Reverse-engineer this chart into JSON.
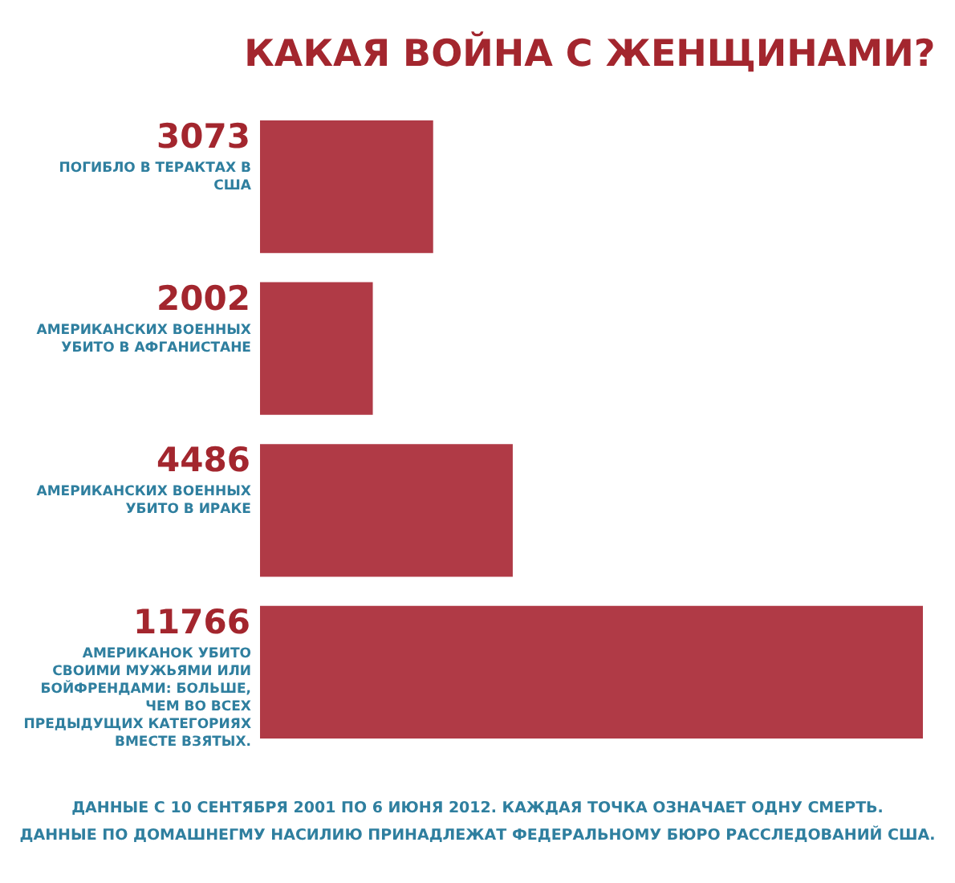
{
  "chart_data": {
    "type": "bar",
    "orientation": "horizontal",
    "title": "КАКАЯ ВОЙНА С ЖЕНЩИНАМИ?",
    "categories": [
      "ПОГИБЛО В ТЕРАКТАХ В США",
      "АМЕРИКАНСКИХ ВОЕННЫХ УБИТО В АФГАНИСТАНЕ",
      "АМЕРИКАНСКИХ ВОЕННЫХ УБИТО В ИРАКЕ",
      "АМЕРИКАНОК УБИТО СВОИМИ МУЖЬЯМИ ИЛИ БОЙФРЕНДАМИ: БОЛЬШЕ, ЧЕМ ВО ВСЕХ ПРЕДЫДУЩИХ КАТЕГОРИЯХ ВМЕСТЕ ВЗЯТЫХ."
    ],
    "values": [
      3073,
      2002,
      4486,
      11766
    ],
    "color": "#b03a46",
    "data_labels": true,
    "annotations": [
      "ДАННЫЕ С 10 СЕНТЯБРЯ 2001 ПО 6 ИЮНЯ 2012. КАЖДАЯ ТОЧКА ОЗНАЧАЕТ ОДНУ СМЕРТЬ.",
      "ДАННЫЕ ПО ДОМАШНЕГМУ НАСИЛИЮ ПРИНАДЛЕЖАТ ФЕДЕРАЛЬНОМУ БЮРО РАССЛЕДОВАНИЙ США."
    ]
  }
}
